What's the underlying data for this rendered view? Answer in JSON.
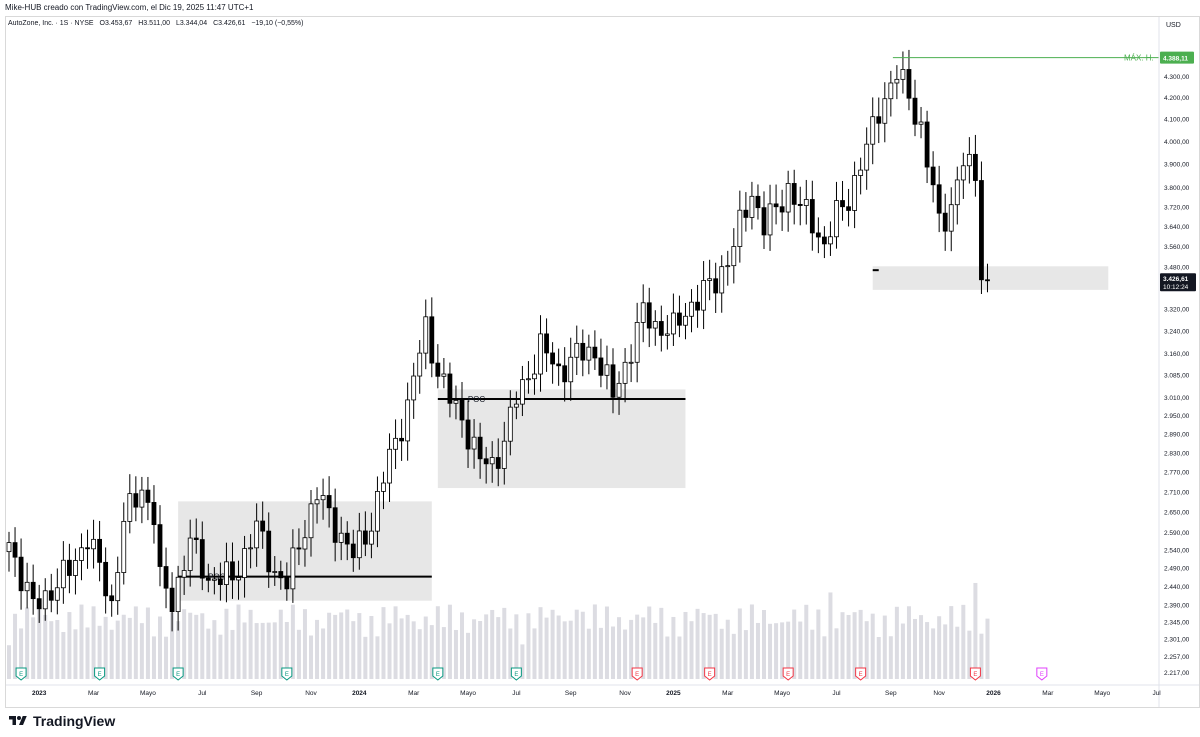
{
  "header": {
    "creator_note": "Mike-HUB creado con TradingView.com, el Dic 19, 2025 11:47 UTC+1",
    "symbol": "AutoZone, Inc. · 1S · NYSE",
    "open": "O3.453,67",
    "high": "H3.511,00",
    "low": "L3.344,04",
    "close": "C3.426,61",
    "change": "−19,10 (−0,55%)"
  },
  "axis": {
    "currency": "USD"
  },
  "footer": {
    "brand": "TradingView"
  },
  "colors": {
    "candle_up_fill": "#ffffff",
    "candle_down_fill": "#000000",
    "candle_border": "#000000",
    "volume": "#dcdce2",
    "zone": "#e3e3e3",
    "ath_line": "#4caf50",
    "earnings_past": "#089981",
    "earnings_future": "#f23645",
    "earnings_next": "#e040fb"
  },
  "chart_data": {
    "type": "candlestick",
    "interval": "weekly",
    "y_scale": "log",
    "ylim": [
      2200,
      4450
    ],
    "y_ticks": [
      4300,
      4200,
      4100,
      4000,
      3900,
      3800,
      3720,
      3640,
      3560,
      3480,
      3400,
      3320,
      3240,
      3160,
      3085,
      3010,
      2950,
      2890,
      2830,
      2770,
      2710,
      2650,
      2590,
      2540,
      2490,
      2440,
      2390,
      2345,
      2301,
      2257,
      2217
    ],
    "y_tick_labels": [
      "4.300,00",
      "4.200,00",
      "4.100,00",
      "4.000,00",
      "3.900,00",
      "3.800,00",
      "3.720,00",
      "3.640,00",
      "3.560,00",
      "3.480,00",
      "3.400,00",
      "3.320,00",
      "3.240,00",
      "3.160,00",
      "3.085,00",
      "3.010,00",
      "2.950,00",
      "2.890,00",
      "2.830,00",
      "2.770,00",
      "2.710,00",
      "2.650,00",
      "2.590,00",
      "2.540,00",
      "2.490,00",
      "2.440,00",
      "2.390,00",
      "2.345,00",
      "2.301,00",
      "2.257,00",
      "2.217,00"
    ],
    "x_labels": [
      {
        "label": "2023",
        "week": 5,
        "bold": true
      },
      {
        "label": "Mar",
        "week": 14
      },
      {
        "label": "Mayo",
        "week": 23
      },
      {
        "label": "Jul",
        "week": 32
      },
      {
        "label": "Sep",
        "week": 41
      },
      {
        "label": "Nov",
        "week": 50
      },
      {
        "label": "2024",
        "week": 58,
        "bold": true
      },
      {
        "label": "Mar",
        "week": 67
      },
      {
        "label": "Mayo",
        "week": 76
      },
      {
        "label": "Jul",
        "week": 84
      },
      {
        "label": "Sep",
        "week": 93
      },
      {
        "label": "Nov",
        "week": 102
      },
      {
        "label": "2025",
        "week": 110,
        "bold": true
      },
      {
        "label": "Mar",
        "week": 119
      },
      {
        "label": "Mayo",
        "week": 128
      },
      {
        "label": "Jul",
        "week": 137
      },
      {
        "label": "Sep",
        "week": 146
      },
      {
        "label": "Nov",
        "week": 154
      },
      {
        "label": "2026",
        "week": 163,
        "bold": true
      },
      {
        "label": "Mar",
        "week": 172
      },
      {
        "label": "Mayo",
        "week": 181
      },
      {
        "label": "Jul",
        "week": 190
      }
    ],
    "anchors": [
      [
        0,
        2560
      ],
      [
        4,
        2380
      ],
      [
        10,
        2480
      ],
      [
        13,
        2580
      ],
      [
        17,
        2390
      ],
      [
        19,
        2620
      ],
      [
        22,
        2720
      ],
      [
        24,
        2640
      ],
      [
        25,
        2450
      ],
      [
        27,
        2400
      ],
      [
        30,
        2560
      ],
      [
        33,
        2460
      ],
      [
        37,
        2460
      ],
      [
        41,
        2600
      ],
      [
        44,
        2480
      ],
      [
        46,
        2440
      ],
      [
        48,
        2560
      ],
      [
        51,
        2700
      ],
      [
        54,
        2610
      ],
      [
        57,
        2520
      ],
      [
        60,
        2620
      ],
      [
        63,
        2810
      ],
      [
        66,
        2980
      ],
      [
        69,
        3250
      ],
      [
        71,
        3100
      ],
      [
        73,
        3000
      ],
      [
        75,
        2940
      ],
      [
        78,
        2800
      ],
      [
        80,
        2790
      ],
      [
        82,
        2870
      ],
      [
        84,
        3000
      ],
      [
        88,
        3180
      ],
      [
        91,
        3100
      ],
      [
        94,
        3150
      ],
      [
        97,
        3170
      ],
      [
        100,
        3010
      ],
      [
        102,
        3120
      ],
      [
        105,
        3300
      ],
      [
        107,
        3260
      ],
      [
        110,
        3240
      ],
      [
        113,
        3340
      ],
      [
        117,
        3420
      ],
      [
        120,
        3560
      ],
      [
        123,
        3780
      ],
      [
        125,
        3640
      ],
      [
        127,
        3700
      ],
      [
        129,
        3800
      ],
      [
        131,
        3710
      ],
      [
        133,
        3660
      ],
      [
        135,
        3560
      ],
      [
        137,
        3680
      ],
      [
        139,
        3760
      ],
      [
        142,
        3960
      ],
      [
        144,
        4150
      ],
      [
        147,
        4300
      ],
      [
        149,
        4220
      ],
      [
        151,
        4050
      ],
      [
        152,
        3900
      ],
      [
        154,
        3660
      ],
      [
        156,
        3720
      ],
      [
        158,
        3900
      ],
      [
        160,
        3870
      ],
      [
        161,
        3470
      ],
      [
        162,
        3426.61
      ]
    ],
    "points_note": "weekly closes interpolated from the visible chart; gaps between anchors filled in steps",
    "last_price": {
      "value": 3426.61,
      "label": "3.426,61",
      "countdown": "10:12:24"
    },
    "all_time_high": {
      "value": 4388.11,
      "label": "4.388,11",
      "text": "MÁX. H."
    },
    "poc_label": "POC",
    "zones": [
      {
        "week_from": 28,
        "week_to": 70,
        "low": 2400,
        "high": 2680,
        "poc": 2465
      },
      {
        "week_from": 71,
        "week_to": 112,
        "low": 2720,
        "high": 3035,
        "poc": 3003
      },
      {
        "week_from": 143,
        "week_to": 182,
        "low": 3390,
        "high": 3480,
        "poc": 3465
      }
    ],
    "earnings": [
      {
        "week": 2,
        "label": "E",
        "state": "past"
      },
      {
        "week": 15,
        "label": "E",
        "state": "past"
      },
      {
        "week": 28,
        "label": "E",
        "state": "past"
      },
      {
        "week": 46,
        "label": "E",
        "state": "past"
      },
      {
        "week": 71,
        "label": "E",
        "state": "past"
      },
      {
        "week": 84,
        "label": "E",
        "state": "past"
      },
      {
        "week": 104,
        "label": "E",
        "state": "future"
      },
      {
        "week": 116,
        "label": "E",
        "state": "future"
      },
      {
        "week": 129,
        "label": "E",
        "state": "future"
      },
      {
        "week": 141,
        "label": "E",
        "state": "future"
      },
      {
        "week": 160,
        "label": "E",
        "state": "future"
      },
      {
        "week": 171,
        "label": "E",
        "state": "next"
      }
    ]
  }
}
